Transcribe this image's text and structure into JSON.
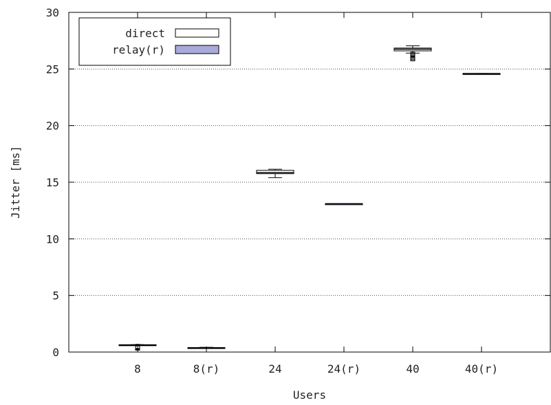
{
  "chart_data": {
    "type": "box",
    "xlabel": "Users",
    "ylabel": "Jitter [ms]",
    "ylim": [
      0,
      30
    ],
    "yticks": [
      0,
      5,
      10,
      15,
      20,
      25,
      30
    ],
    "grid": "horizontal-dotted",
    "legend": {
      "placement": "top-left",
      "entries": [
        {
          "label": "direct",
          "color": "#ffffff"
        },
        {
          "label": "relay(r)",
          "color": "#aaaad8"
        }
      ]
    },
    "categories": [
      "8",
      "8(r)",
      "24",
      "24(r)",
      "40",
      "40(r)"
    ],
    "boxes": [
      {
        "category": "8",
        "series": "direct",
        "whisker_low": 0.6,
        "q1": 0.6,
        "median": 0.6,
        "q3": 0.65,
        "whisker_high": 0.65,
        "outliers": [
          0.5,
          0.45,
          0.4,
          0.35
        ]
      },
      {
        "category": "8(r)",
        "series": "relay(r)",
        "whisker_low": 0.35,
        "q1": 0.35,
        "median": 0.38,
        "q3": 0.4,
        "whisker_high": 0.42,
        "outliers": []
      },
      {
        "category": "24",
        "series": "direct",
        "whisker_low": 15.4,
        "q1": 15.75,
        "median": 15.85,
        "q3": 16.05,
        "whisker_high": 16.15,
        "outliers": []
      },
      {
        "category": "24(r)",
        "series": "relay(r)",
        "whisker_low": 13.1,
        "q1": 13.1,
        "median": 13.1,
        "q3": 13.1,
        "whisker_high": 13.1,
        "outliers": []
      },
      {
        "category": "40",
        "series": "direct",
        "whisker_low": 26.4,
        "q1": 26.6,
        "median": 26.75,
        "q3": 26.85,
        "whisker_high": 27.05,
        "outliers": [
          26.3,
          26.2,
          26.1,
          26.0,
          25.9
        ]
      },
      {
        "category": "40(r)",
        "series": "relay(r)",
        "whisker_low": 24.6,
        "q1": 24.6,
        "median": 24.6,
        "q3": 24.6,
        "whisker_high": 24.6,
        "outliers": []
      }
    ]
  }
}
